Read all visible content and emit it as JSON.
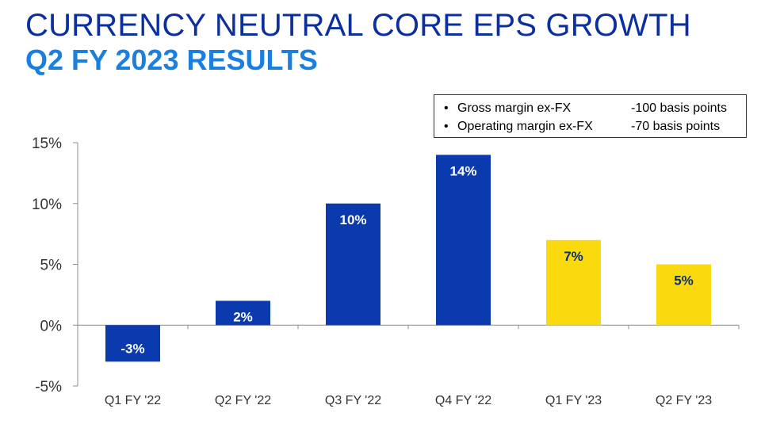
{
  "header": {
    "title": "CURRENCY NEUTRAL CORE EPS GROWTH",
    "subtitle": "Q2 FY 2023 RESULTS"
  },
  "notes": [
    {
      "bullet": "•",
      "label": "Gross margin ex-FX",
      "value": "-100 basis points"
    },
    {
      "bullet": "•",
      "label": "Operating margin ex-FX",
      "value": "-70 basis points"
    }
  ],
  "colors": {
    "title": "#0b2f9f",
    "subtitle": "#1b7fe0",
    "fy22_bar": "#0a3aad",
    "fy23_bar": "#fad90f",
    "fy22_label": "#ffffff",
    "fy23_label": "#0b2f6e"
  },
  "chart_data": {
    "type": "bar",
    "categories": [
      "Q1 FY '22",
      "Q2 FY '22",
      "Q3 FY '22",
      "Q4 FY '22",
      "Q1 FY '23",
      "Q2 FY '23"
    ],
    "values": [
      -3,
      2,
      10,
      14,
      7,
      5
    ],
    "data_labels": [
      "-3%",
      "2%",
      "10%",
      "14%",
      "7%",
      "5%"
    ],
    "fiscal_year_group": [
      "FY22",
      "FY22",
      "FY22",
      "FY22",
      "FY23",
      "FY23"
    ],
    "ylim": [
      -5,
      15
    ],
    "yticks": [
      -5,
      0,
      5,
      10,
      15
    ],
    "ytick_labels": [
      "-5%",
      "0%",
      "5%",
      "10%",
      "15%"
    ],
    "xlabel": "",
    "ylabel": "",
    "grid": false
  }
}
